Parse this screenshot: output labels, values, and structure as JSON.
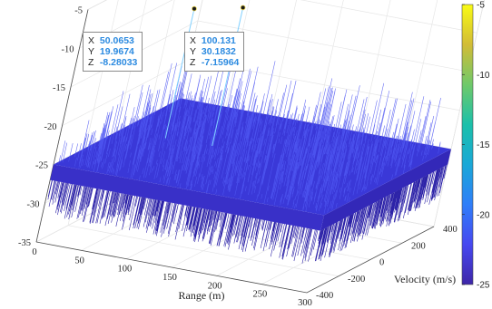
{
  "chart_data": {
    "type": "surface",
    "z_range": [
      -35,
      -5
    ],
    "x_axis": {
      "label": "Range (m)",
      "range": [
        0,
        300
      ],
      "ticks": [
        0,
        50,
        100,
        150,
        200,
        250,
        300
      ]
    },
    "y_axis": {
      "label": "Velocity (m/s)",
      "range": [
        -400,
        400
      ],
      "ticks": [
        -400,
        -200,
        0,
        200,
        400
      ]
    },
    "z_axis": {
      "label": "",
      "ticks": [
        -35,
        -30,
        -25,
        -20,
        -15,
        -10,
        -5
      ]
    },
    "colorbar": {
      "range": [
        -25,
        -5
      ],
      "ticks": [
        -25,
        -20,
        -15,
        -10,
        -5
      ],
      "colormap": [
        "#3e26a8",
        "#4748f0",
        "#2f7ef9",
        "#1aa8d7",
        "#1bc0aa",
        "#6fc96a",
        "#d2bc36",
        "#f9fb15"
      ]
    },
    "noise_floor_level": -25,
    "surface_color": "#3a38d8",
    "grid": true,
    "data_tips": [
      {
        "x": "50.0653",
        "y": "19.9674",
        "z": "-8.28033"
      },
      {
        "x": "100.131",
        "y": "30.1832",
        "z": "-7.15964"
      }
    ]
  },
  "labels": {
    "x": "X",
    "y": "Y",
    "z": "Z"
  }
}
